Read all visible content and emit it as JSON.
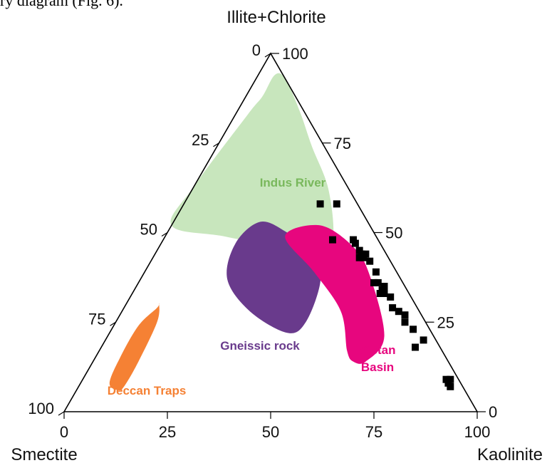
{
  "caption_fragment": "ry diagram (Fig. 6).",
  "chart_data": {
    "type": "ternary",
    "vertices": {
      "top": "Illite+Chlorite",
      "left": "Smectite",
      "right": "Kaolinite"
    },
    "tick_values": [
      0,
      25,
      50,
      75,
      100
    ],
    "axes": {
      "bottom": {
        "labels": [
          "0",
          "25",
          "50",
          "75",
          "100"
        ]
      },
      "left": {
        "labels": [
          "0",
          "25",
          "50",
          "75",
          "100"
        ]
      },
      "right": {
        "labels": [
          "100",
          "75",
          "50",
          "25",
          "0"
        ]
      }
    },
    "regions": [
      {
        "label": "Indus River",
        "color": "#c8e6bd",
        "label_color": "#79b85c",
        "polygon": [
          [
            52,
            48,
            0
          ],
          [
            63,
            37,
            0
          ],
          [
            83,
            14,
            3
          ],
          [
            88,
            8,
            4
          ],
          [
            94,
            2,
            4
          ],
          [
            93,
            0,
            7
          ],
          [
            84,
            1,
            15
          ],
          [
            74,
            3,
            23
          ],
          [
            62,
            5,
            33
          ],
          [
            48,
            11,
            41
          ],
          [
            45,
            17,
            38
          ],
          [
            46,
            25,
            29
          ],
          [
            49,
            37,
            14
          ]
        ]
      },
      {
        "label": "Deccan Traps",
        "color": "#f58134",
        "label_color": "#f58134",
        "polygon": [
          [
            15,
            79,
            6
          ],
          [
            24,
            70,
            6
          ],
          [
            29,
            63,
            8
          ],
          [
            30,
            62,
            8
          ],
          [
            25,
            65,
            10
          ],
          [
            14,
            75,
            11
          ],
          [
            7,
            82,
            11
          ],
          [
            6,
            84,
            10
          ],
          [
            8,
            85,
            7
          ]
        ]
      },
      {
        "label": "Gneissic rock",
        "color": "#693a8c",
        "label_color": "#693a8c",
        "polygon": [
          [
            53,
            26,
            21
          ],
          [
            50,
            21,
            29
          ],
          [
            44,
            17,
            39
          ],
          [
            36,
            20,
            44
          ],
          [
            25,
            29,
            46
          ],
          [
            22,
            35,
            43
          ],
          [
            28,
            41,
            31
          ],
          [
            37,
            42,
            21
          ],
          [
            47,
            35,
            18
          ]
        ]
      },
      {
        "label": "Sistan Basin",
        "color": "#e7067e",
        "label_color": "#e7067e",
        "polygon": [
          [
            49,
            22,
            29
          ],
          [
            39,
            20,
            41
          ],
          [
            28,
            19,
            53
          ],
          [
            17,
            23,
            60
          ],
          [
            14,
            23,
            63
          ],
          [
            14,
            20,
            66
          ],
          [
            21,
            12,
            67
          ],
          [
            38,
            7,
            55
          ],
          [
            46,
            7,
            47
          ],
          [
            52,
            12,
            36
          ]
        ]
      }
    ],
    "samples": [
      [
        58,
        5,
        37
      ],
      [
        58,
        9,
        33
      ],
      [
        48,
        11,
        41
      ],
      [
        48,
        6,
        46
      ],
      [
        47,
        6,
        47
      ],
      [
        45,
        6,
        49
      ],
      [
        44,
        5,
        51
      ],
      [
        44,
        6,
        50
      ],
      [
        43,
        6,
        51
      ],
      [
        43,
        7,
        50
      ],
      [
        42,
        5,
        53
      ],
      [
        39,
        5,
        56
      ],
      [
        36,
        6,
        58
      ],
      [
        36,
        7,
        57
      ],
      [
        34,
        6,
        60
      ],
      [
        35,
        5,
        60
      ],
      [
        33,
        7,
        60
      ],
      [
        33,
        6,
        61
      ],
      [
        32,
        5,
        63
      ],
      [
        29,
        6,
        65
      ],
      [
        28,
        5,
        67
      ],
      [
        27,
        4,
        69
      ],
      [
        25,
        5,
        70
      ],
      [
        20,
        3,
        77
      ],
      [
        18,
        6,
        76
      ],
      [
        23,
        4,
        73
      ],
      [
        9,
        3,
        88
      ],
      [
        8,
        3,
        89
      ],
      [
        7,
        3,
        90
      ],
      [
        9,
        2,
        89
      ]
    ]
  },
  "colors": {
    "frame": "#000000",
    "sample": "#000000"
  }
}
